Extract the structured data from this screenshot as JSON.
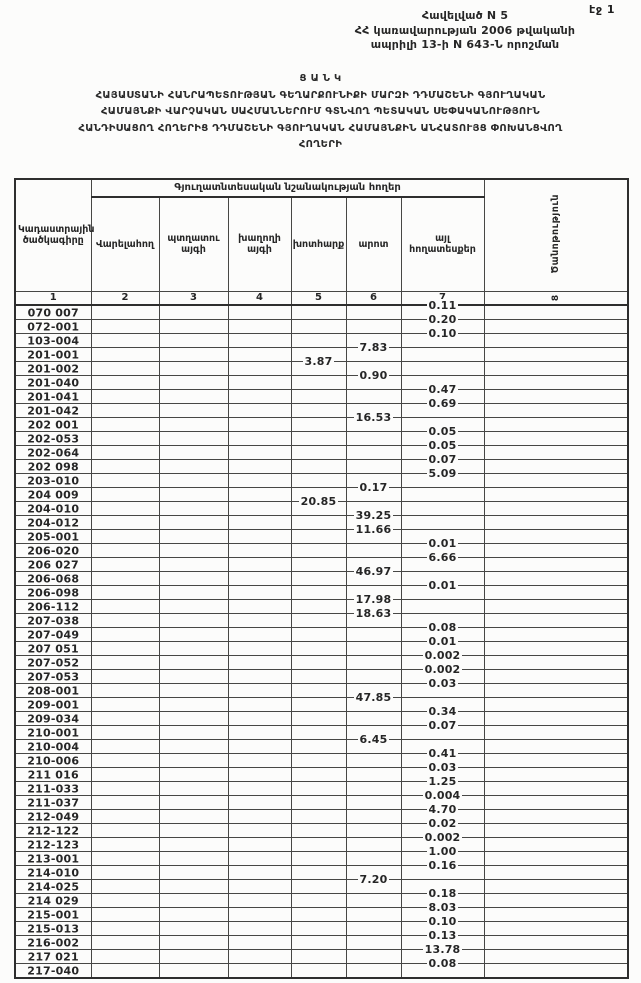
{
  "page": {
    "page_number": "էջ 1",
    "appendix": {
      "line1": "Հավելված N 5",
      "line2": "ՀՀ կառավարության 2006 թվականի",
      "line3": "ապրիլի 13-ի N 643-Ն որոշման"
    },
    "title": {
      "line1": "Ց Ա Ն Կ",
      "line2": "ՀԱՅԱՍՏԱՆԻ ՀԱՆՐԱՊԵՏՈՒԹՅԱՆ ԳԵՂԱՐՔՈՒՆԻՔԻ ՄԱՐԶԻ ԴԴՄԱՇԵՆԻ ԳՅՈՒՂԱԿԱՆ",
      "line3": "ՀԱՄԱՅՆՔԻ ՎԱՐՉԱԿԱՆ ՍԱՀՄԱՆՆԵՐՈՒՄ ԳՏՆՎՈՂ ՊԵՏԱԿԱՆ ՍԵՓԱԿԱՆՈՒԹՅՈՒՆ",
      "line4": "ՀԱՆԴԻՍԱՑՈՂ ՀՈՂԵՐԻՑ ԴԴՄԱՇԵՆԻ ԳՅՈՒՂԱԿԱՆ ՀԱՄԱՅՆՔԻՆ ԱՆՀԱՏՈՒՅՑ ՓՈԽԱՆՑՎՈՂ",
      "line5": "ՀՈՂԵՐԻ"
    }
  },
  "table": {
    "col1_header": "Կադաստրային ծածկագիրը",
    "group_header": "Գյուղատնտեսական նշանակության հողեր",
    "sub_headers": [
      "Վարելահող",
      "պտղատու այգի",
      "խաղողի այգի",
      "խոտհարք",
      "արոտ",
      "այլ հողատեսքեր"
    ],
    "note_header": "Ծանոթություն",
    "col_numbers": [
      "1",
      "2",
      "3",
      "4",
      "5",
      "6",
      "7",
      "8"
    ],
    "rows": [
      {
        "code": "070 007",
        "v7": "0.11"
      },
      {
        "code": "072-001",
        "v7": "0.20"
      },
      {
        "code": "103-004",
        "v7": "0.10"
      },
      {
        "code": "201-001",
        "v6": "7.83"
      },
      {
        "code": "201-002",
        "v5": "3.87"
      },
      {
        "code": "201-040",
        "v6": "0.90"
      },
      {
        "code": "201-041",
        "v7": "0.47"
      },
      {
        "code": "201-042",
        "v7": "0.69"
      },
      {
        "code": "202 001",
        "v6": "16.53"
      },
      {
        "code": "202-053",
        "v7": "0.05"
      },
      {
        "code": "202-064",
        "v7": "0.05"
      },
      {
        "code": "202 098",
        "v7": "0.07"
      },
      {
        "code": "203-010",
        "v7": "5.09"
      },
      {
        "code": "204 009",
        "v6": "0.17"
      },
      {
        "code": "204-010",
        "v5": "20.85"
      },
      {
        "code": "204-012",
        "v6": "39.25"
      },
      {
        "code": "205-001",
        "v6": "11.66"
      },
      {
        "code": "206-020",
        "v7": "0.01"
      },
      {
        "code": "206 027",
        "v7": "6.66"
      },
      {
        "code": "206-068",
        "v6": "46.97"
      },
      {
        "code": "206-098",
        "v7": "0.01"
      },
      {
        "code": "206-112",
        "v6": "17.98"
      },
      {
        "code": "207-038",
        "v6": "18.63"
      },
      {
        "code": "207-049",
        "v7": "0.08"
      },
      {
        "code": "207 051",
        "v7": "0.01"
      },
      {
        "code": "207-052",
        "v7": "0.002"
      },
      {
        "code": "207-053",
        "v7": "0.002"
      },
      {
        "code": "208-001",
        "v7": "0.03"
      },
      {
        "code": "209-001",
        "v6": "47.85"
      },
      {
        "code": "209-034",
        "v7": "0.34"
      },
      {
        "code": "210-001",
        "v7": "0.07"
      },
      {
        "code": "210-004",
        "v6": "6.45"
      },
      {
        "code": "210-006",
        "v7": "0.41"
      },
      {
        "code": "211 016",
        "v7": "0.03"
      },
      {
        "code": "211-033",
        "v7": "1.25"
      },
      {
        "code": "211-037",
        "v7": "0.004"
      },
      {
        "code": "212-049",
        "v7": "4.70"
      },
      {
        "code": "212-122",
        "v7": "0.02"
      },
      {
        "code": "212-123",
        "v7": "0.002"
      },
      {
        "code": "213-001",
        "v7": "1.00"
      },
      {
        "code": "214-010",
        "v7": "0.16"
      },
      {
        "code": "214-025",
        "v6": "7.20"
      },
      {
        "code": "214 029",
        "v7": "0.18"
      },
      {
        "code": "215-001",
        "v7": "8.03"
      },
      {
        "code": "215-013",
        "v7": "0.10"
      },
      {
        "code": "216-002",
        "v7": "0.13"
      },
      {
        "code": "217 021",
        "v7": "13.78"
      },
      {
        "code": "217-040",
        "v7": "0.08"
      }
    ]
  }
}
